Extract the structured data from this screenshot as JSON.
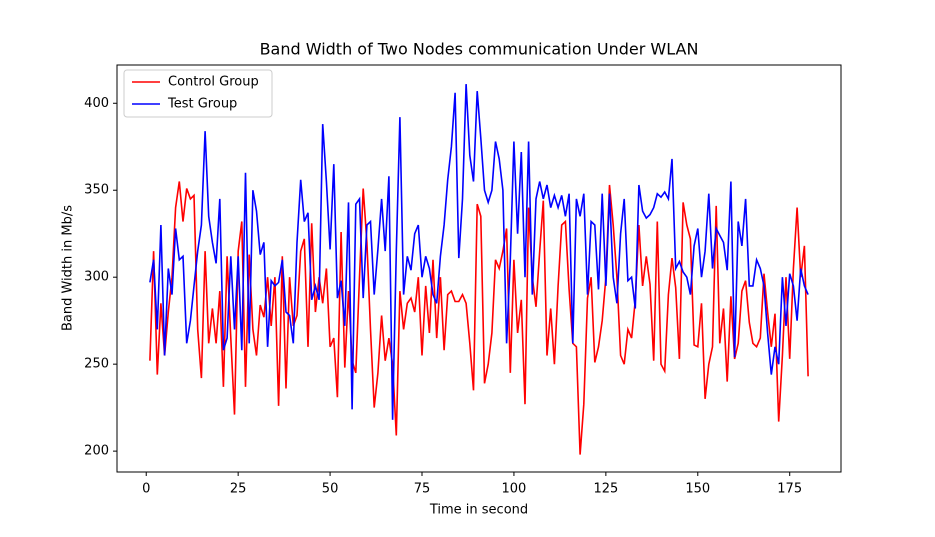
{
  "chart_data": {
    "type": "line",
    "title": "Band Width of Two Nodes communication Under WLAN",
    "xlabel": "Time in second",
    "ylabel": "Band Width in Mb/s",
    "x": [
      1,
      2,
      3,
      4,
      5,
      6,
      7,
      8,
      9,
      10,
      11,
      12,
      13,
      14,
      15,
      16,
      17,
      18,
      19,
      20,
      21,
      22,
      23,
      24,
      25,
      26,
      27,
      28,
      29,
      30,
      31,
      32,
      33,
      34,
      35,
      36,
      37,
      38,
      39,
      40,
      41,
      42,
      43,
      44,
      45,
      46,
      47,
      48,
      49,
      50,
      51,
      52,
      53,
      54,
      55,
      56,
      57,
      58,
      59,
      60,
      61,
      62,
      63,
      64,
      65,
      66,
      67,
      68,
      69,
      70,
      71,
      72,
      73,
      74,
      75,
      76,
      77,
      78,
      79,
      80,
      81,
      82,
      83,
      84,
      85,
      86,
      87,
      88,
      89,
      90,
      91,
      92,
      93,
      94,
      95,
      96,
      97,
      98,
      99,
      100,
      101,
      102,
      103,
      104,
      105,
      106,
      107,
      108,
      109,
      110,
      111,
      112,
      113,
      114,
      115,
      116,
      117,
      118,
      119,
      120,
      121,
      122,
      123,
      124,
      125,
      126,
      127,
      128,
      129,
      130,
      131,
      132,
      133,
      134,
      135,
      136,
      137,
      138,
      139,
      140,
      141,
      142,
      143,
      144,
      145,
      146,
      147,
      148,
      149,
      150,
      151,
      152,
      153,
      154,
      155,
      156,
      157,
      158,
      159,
      160,
      161,
      162,
      163,
      164,
      165,
      166,
      167,
      168,
      169,
      170,
      171,
      172,
      173,
      174,
      175,
      176,
      177,
      178,
      179,
      180
    ],
    "series": [
      {
        "name": "Control Group",
        "color": "#ff0000",
        "values": [
          252,
          315,
          244,
          285,
          255,
          280,
          300,
          340,
          355,
          332,
          351,
          345,
          347,
          270,
          242,
          315,
          262,
          282,
          262,
          292,
          237,
          312,
          265,
          221,
          315,
          332,
          237,
          313,
          270,
          255,
          284,
          277,
          300,
          272,
          300,
          226,
          312,
          236,
          300,
          272,
          278,
          315,
          322,
          260,
          331,
          280,
          300,
          285,
          305,
          260,
          265,
          231,
          326,
          248,
          292,
          252,
          245,
          300,
          351,
          320,
          270,
          225,
          245,
          278,
          252,
          265,
          250,
          209,
          292,
          270,
          285,
          288,
          280,
          300,
          255,
          295,
          268,
          310,
          265,
          300,
          258,
          290,
          292,
          286,
          286,
          290,
          285,
          262,
          235,
          342,
          335,
          239,
          250,
          268,
          310,
          305,
          315,
          328,
          245,
          310,
          268,
          287,
          227,
          340,
          300,
          283,
          315,
          344,
          255,
          282,
          250,
          295,
          330,
          332,
          293,
          262,
          260,
          198,
          227,
          288,
          300,
          251,
          260,
          275,
          300,
          353,
          330,
          300,
          255,
          250,
          270,
          265,
          287,
          330,
          295,
          312,
          296,
          252,
          332,
          250,
          246,
          290,
          311,
          294,
          253,
          343,
          330,
          322,
          261,
          260,
          285,
          230,
          250,
          260,
          341,
          262,
          282,
          240,
          289,
          253,
          262,
          292,
          298,
          274,
          262,
          260,
          265,
          302,
          280,
          260,
          279,
          217,
          255,
          300,
          253,
          305,
          340,
          300,
          318,
          243
        ]
      },
      {
        "name": "Test Group",
        "color": "#0000ff",
        "values": [
          297,
          310,
          270,
          330,
          255,
          305,
          290,
          328,
          310,
          312,
          262,
          275,
          295,
          315,
          330,
          384,
          335,
          320,
          308,
          345,
          258,
          265,
          312,
          270,
          312,
          258,
          360,
          262,
          350,
          338,
          313,
          320,
          260,
          298,
          295,
          297,
          310,
          280,
          278,
          262,
          320,
          356,
          332,
          337,
          287,
          295,
          287,
          388,
          355,
          316,
          365,
          288,
          298,
          272,
          343,
          224,
          342,
          345,
          288,
          330,
          332,
          290,
          316,
          345,
          315,
          358,
          218,
          315,
          392,
          290,
          312,
          304,
          325,
          330,
          300,
          312,
          305,
          290,
          285,
          312,
          330,
          356,
          375,
          406,
          311,
          345,
          411,
          370,
          355,
          407,
          380,
          350,
          343,
          350,
          378,
          368,
          350,
          262,
          310,
          378,
          325,
          372,
          300,
          378,
          290,
          345,
          355,
          345,
          353,
          340,
          347,
          340,
          347,
          335,
          348,
          262,
          345,
          335,
          348,
          290,
          332,
          330,
          293,
          348,
          295,
          348,
          300,
          285,
          325,
          345,
          298,
          300,
          282,
          353,
          338,
          334,
          336,
          340,
          348,
          346,
          349,
          345,
          368,
          305,
          309,
          303,
          300,
          290,
          318,
          328,
          300,
          315,
          348,
          305,
          328,
          324,
          320,
          304,
          355,
          254,
          332,
          318,
          345,
          295,
          295,
          310,
          305,
          295,
          268,
          244,
          260,
          250,
          300,
          272,
          302,
          295,
          275,
          305,
          295,
          290
        ]
      }
    ],
    "xlim": [
      -7.95,
      188.95
    ],
    "xticks": [
      0,
      25,
      50,
      75,
      100,
      125,
      150,
      175
    ],
    "ylim": [
      188,
      422
    ],
    "yticks": [
      200,
      250,
      300,
      350,
      400
    ],
    "legend": "upper left",
    "grid": false
  }
}
